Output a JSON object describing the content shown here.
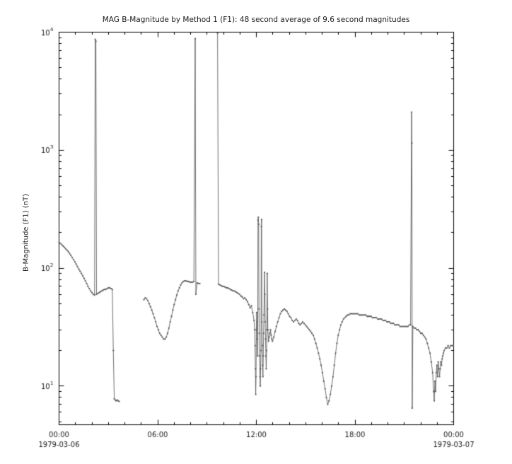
{
  "page": {
    "title": "MAG  B-Magnitude by Method 1 (F1): 48 second average of 9.6 second magnitudes"
  },
  "chart_data": {
    "type": "line",
    "title": "MAG  B-Magnitude by Method 1 (F1): 48 second average of 9.6 second magnitudes",
    "xlabel": "",
    "ylabel": "B-Magnitude (F1) (nT)",
    "yscale": "log",
    "ylim": [
      4.7,
      10000
    ],
    "xlim_hours": [
      0,
      24
    ],
    "x_major_ticks": [
      0,
      6,
      12,
      18,
      24
    ],
    "x_major_labels": [
      "00:00",
      "06:00",
      "12:00",
      "18:00",
      "00:00"
    ],
    "x_date_labels": [
      {
        "tick": 0,
        "label": "1979-03-06"
      },
      {
        "tick": 24,
        "label": "1979-03-07"
      }
    ],
    "y_major_ticks": [
      10,
      100,
      1000,
      10000
    ],
    "grid": false,
    "legend": "none",
    "axis_color": "#000000",
    "line_color": "#5e5e5e",
    "series": [
      {
        "name": "B-Magnitude (F1)",
        "points": [
          [
            0.0,
            165
          ],
          [
            0.08,
            162
          ],
          [
            0.16,
            158
          ],
          [
            0.24,
            154
          ],
          [
            0.32,
            150
          ],
          [
            0.4,
            146
          ],
          [
            0.48,
            142
          ],
          [
            0.56,
            138
          ],
          [
            0.64,
            133
          ],
          [
            0.72,
            128
          ],
          [
            0.8,
            123
          ],
          [
            0.88,
            118
          ],
          [
            0.96,
            113
          ],
          [
            1.04,
            108
          ],
          [
            1.12,
            103
          ],
          [
            1.2,
            98
          ],
          [
            1.28,
            94
          ],
          [
            1.36,
            90
          ],
          [
            1.44,
            86
          ],
          [
            1.52,
            82
          ],
          [
            1.6,
            78
          ],
          [
            1.68,
            74
          ],
          [
            1.76,
            70
          ],
          [
            1.84,
            67
          ],
          [
            1.92,
            64
          ],
          [
            2.0,
            62
          ],
          [
            2.08,
            60
          ],
          [
            2.16,
            59
          ],
          [
            2.2,
            8700
          ],
          [
            2.24,
            8400
          ],
          [
            2.28,
            60
          ],
          [
            2.36,
            61
          ],
          [
            2.44,
            62
          ],
          [
            2.52,
            63
          ],
          [
            2.6,
            64
          ],
          [
            2.68,
            65
          ],
          [
            2.76,
            66
          ],
          [
            2.84,
            66
          ],
          [
            2.92,
            67
          ],
          [
            3.0,
            68
          ],
          [
            3.08,
            68
          ],
          [
            3.16,
            67
          ],
          [
            3.24,
            66
          ],
          [
            3.3,
            20
          ],
          [
            3.36,
            7.8
          ],
          [
            3.42,
            7.6
          ],
          [
            3.48,
            7.5
          ],
          [
            3.54,
            7.6
          ],
          [
            3.6,
            7.5
          ],
          [
            3.66,
            7.4
          ],
          [
            4.4,
            null
          ],
          [
            5.16,
            54
          ],
          [
            5.24,
            56
          ],
          [
            5.32,
            55
          ],
          [
            5.4,
            53
          ],
          [
            5.48,
            50
          ],
          [
            5.56,
            47
          ],
          [
            5.64,
            44
          ],
          [
            5.72,
            41
          ],
          [
            5.8,
            38
          ],
          [
            5.88,
            35
          ],
          [
            5.96,
            32
          ],
          [
            6.04,
            30
          ],
          [
            6.12,
            28
          ],
          [
            6.2,
            27
          ],
          [
            6.28,
            26
          ],
          [
            6.36,
            25
          ],
          [
            6.44,
            25
          ],
          [
            6.52,
            26
          ],
          [
            6.6,
            28
          ],
          [
            6.68,
            31
          ],
          [
            6.76,
            35
          ],
          [
            6.84,
            39
          ],
          [
            6.92,
            44
          ],
          [
            7.0,
            49
          ],
          [
            7.08,
            54
          ],
          [
            7.16,
            59
          ],
          [
            7.24,
            64
          ],
          [
            7.32,
            68
          ],
          [
            7.4,
            72
          ],
          [
            7.48,
            75
          ],
          [
            7.56,
            77
          ],
          [
            7.64,
            78
          ],
          [
            7.72,
            78
          ],
          [
            7.8,
            77
          ],
          [
            7.88,
            77
          ],
          [
            7.96,
            76
          ],
          [
            8.04,
            76
          ],
          [
            8.12,
            76
          ],
          [
            8.2,
            77
          ],
          [
            8.28,
            8800
          ],
          [
            8.32,
            60
          ],
          [
            8.4,
            75
          ],
          [
            8.48,
            74
          ],
          [
            8.56,
            74
          ],
          [
            9.0,
            null
          ],
          [
            9.64,
            9800
          ],
          [
            9.7,
            73
          ],
          [
            9.78,
            72
          ],
          [
            9.86,
            71
          ],
          [
            9.94,
            70
          ],
          [
            10.02,
            70
          ],
          [
            10.1,
            69
          ],
          [
            10.18,
            68
          ],
          [
            10.26,
            68
          ],
          [
            10.34,
            67
          ],
          [
            10.42,
            66
          ],
          [
            10.5,
            65
          ],
          [
            10.58,
            64
          ],
          [
            10.66,
            64
          ],
          [
            10.74,
            63
          ],
          [
            10.82,
            62
          ],
          [
            10.9,
            61
          ],
          [
            10.98,
            60
          ],
          [
            11.06,
            58
          ],
          [
            11.14,
            57
          ],
          [
            11.22,
            55
          ],
          [
            11.3,
            56
          ],
          [
            11.38,
            54
          ],
          [
            11.46,
            52
          ],
          [
            11.54,
            49
          ],
          [
            11.62,
            46
          ],
          [
            11.7,
            48
          ],
          [
            11.78,
            42
          ],
          [
            11.86,
            36
          ],
          [
            11.9,
            30
          ],
          [
            11.92,
            22
          ],
          [
            11.94,
            14
          ],
          [
            11.96,
            8.5
          ],
          [
            11.98,
            12
          ],
          [
            12.0,
            30
          ],
          [
            12.02,
            42
          ],
          [
            12.04,
            35
          ],
          [
            12.06,
            25
          ],
          [
            12.08,
            18
          ],
          [
            12.1,
            255
          ],
          [
            12.12,
            270
          ],
          [
            12.14,
            235
          ],
          [
            12.16,
            45
          ],
          [
            12.18,
            28
          ],
          [
            12.2,
            18
          ],
          [
            12.22,
            12
          ],
          [
            12.24,
            10
          ],
          [
            12.26,
            14
          ],
          [
            12.28,
            20
          ],
          [
            12.3,
            225
          ],
          [
            12.32,
            258
          ],
          [
            12.34,
            35
          ],
          [
            12.36,
            22
          ],
          [
            12.38,
            15
          ],
          [
            12.4,
            12
          ],
          [
            12.42,
            18
          ],
          [
            12.44,
            28
          ],
          [
            12.46,
            40
          ],
          [
            12.5,
            92
          ],
          [
            12.52,
            60
          ],
          [
            12.54,
            35
          ],
          [
            12.56,
            25
          ],
          [
            12.58,
            18
          ],
          [
            12.6,
            14
          ],
          [
            12.62,
            20
          ],
          [
            12.64,
            30
          ],
          [
            12.66,
            90
          ],
          [
            12.68,
            45
          ],
          [
            12.7,
            30
          ],
          [
            12.74,
            24
          ],
          [
            12.78,
            26
          ],
          [
            12.82,
            28
          ],
          [
            12.86,
            30
          ],
          [
            12.9,
            27
          ],
          [
            12.94,
            25
          ],
          [
            12.98,
            24
          ],
          [
            13.06,
            26
          ],
          [
            13.14,
            29
          ],
          [
            13.22,
            32
          ],
          [
            13.3,
            35
          ],
          [
            13.38,
            38
          ],
          [
            13.46,
            41
          ],
          [
            13.54,
            43
          ],
          [
            13.62,
            44
          ],
          [
            13.7,
            45
          ],
          [
            13.78,
            44
          ],
          [
            13.86,
            43
          ],
          [
            13.94,
            41
          ],
          [
            14.02,
            39
          ],
          [
            14.1,
            38
          ],
          [
            14.18,
            36
          ],
          [
            14.26,
            35
          ],
          [
            14.34,
            36
          ],
          [
            14.42,
            37
          ],
          [
            14.5,
            36
          ],
          [
            14.58,
            34
          ],
          [
            14.66,
            33
          ],
          [
            14.74,
            34
          ],
          [
            14.82,
            35
          ],
          [
            14.9,
            34
          ],
          [
            14.98,
            33
          ],
          [
            15.06,
            32
          ],
          [
            15.14,
            31
          ],
          [
            15.22,
            30
          ],
          [
            15.3,
            29
          ],
          [
            15.38,
            28
          ],
          [
            15.46,
            27
          ],
          [
            15.54,
            25
          ],
          [
            15.62,
            23
          ],
          [
            15.7,
            21
          ],
          [
            15.78,
            19
          ],
          [
            15.86,
            17
          ],
          [
            15.94,
            15
          ],
          [
            16.02,
            13
          ],
          [
            16.1,
            11
          ],
          [
            16.18,
            9.5
          ],
          [
            16.26,
            8
          ],
          [
            16.34,
            7
          ],
          [
            16.42,
            7.5
          ],
          [
            16.5,
            8.5
          ],
          [
            16.58,
            10
          ],
          [
            16.66,
            12
          ],
          [
            16.74,
            15
          ],
          [
            16.82,
            19
          ],
          [
            16.9,
            23
          ],
          [
            16.98,
            27
          ],
          [
            17.06,
            30
          ],
          [
            17.14,
            33
          ],
          [
            17.22,
            35
          ],
          [
            17.3,
            37
          ],
          [
            17.38,
            38
          ],
          [
            17.46,
            39
          ],
          [
            17.54,
            40
          ],
          [
            17.62,
            40
          ],
          [
            17.7,
            41
          ],
          [
            17.78,
            41
          ],
          [
            17.86,
            41
          ],
          [
            17.94,
            41
          ],
          [
            18.02,
            41
          ],
          [
            18.1,
            41
          ],
          [
            18.18,
            41
          ],
          [
            18.26,
            40
          ],
          [
            18.34,
            40
          ],
          [
            18.42,
            40
          ],
          [
            18.5,
            40
          ],
          [
            18.58,
            40
          ],
          [
            18.66,
            40
          ],
          [
            18.74,
            39
          ],
          [
            18.82,
            39
          ],
          [
            18.9,
            39
          ],
          [
            18.98,
            39
          ],
          [
            19.06,
            38
          ],
          [
            19.14,
            38
          ],
          [
            19.22,
            38
          ],
          [
            19.3,
            38
          ],
          [
            19.38,
            37
          ],
          [
            19.46,
            37
          ],
          [
            19.54,
            37
          ],
          [
            19.62,
            37
          ],
          [
            19.7,
            36
          ],
          [
            19.78,
            36
          ],
          [
            19.86,
            36
          ],
          [
            19.94,
            35
          ],
          [
            20.02,
            35
          ],
          [
            20.1,
            35
          ],
          [
            20.18,
            34
          ],
          [
            20.26,
            34
          ],
          [
            20.34,
            34
          ],
          [
            20.42,
            33
          ],
          [
            20.5,
            33
          ],
          [
            20.58,
            33
          ],
          [
            20.66,
            33
          ],
          [
            20.74,
            32
          ],
          [
            20.82,
            32
          ],
          [
            20.9,
            32
          ],
          [
            20.98,
            32
          ],
          [
            21.06,
            32
          ],
          [
            21.14,
            32
          ],
          [
            21.22,
            32
          ],
          [
            21.3,
            33
          ],
          [
            21.38,
            33
          ],
          [
            21.44,
            2100
          ],
          [
            21.46,
            1150
          ],
          [
            21.48,
            6.5
          ],
          [
            21.52,
            32
          ],
          [
            21.6,
            31
          ],
          [
            21.68,
            31
          ],
          [
            21.76,
            30
          ],
          [
            21.84,
            30
          ],
          [
            21.92,
            29
          ],
          [
            22.0,
            28
          ],
          [
            22.08,
            28
          ],
          [
            22.16,
            27
          ],
          [
            22.24,
            26
          ],
          [
            22.32,
            25
          ],
          [
            22.4,
            23
          ],
          [
            22.48,
            21
          ],
          [
            22.56,
            19
          ],
          [
            22.64,
            16
          ],
          [
            22.72,
            13
          ],
          [
            22.78,
            9
          ],
          [
            22.82,
            7.5
          ],
          [
            22.86,
            11
          ],
          [
            22.9,
            9
          ],
          [
            22.94,
            13
          ],
          [
            22.98,
            15
          ],
          [
            23.02,
            12
          ],
          [
            23.06,
            16
          ],
          [
            23.1,
            14
          ],
          [
            23.14,
            12
          ],
          [
            23.18,
            14
          ],
          [
            23.22,
            16
          ],
          [
            23.26,
            15
          ],
          [
            23.3,
            17
          ],
          [
            23.34,
            18
          ],
          [
            23.38,
            19
          ],
          [
            23.42,
            20
          ],
          [
            23.5,
            21
          ],
          [
            23.58,
            21
          ],
          [
            23.66,
            22
          ],
          [
            23.74,
            21
          ],
          [
            23.82,
            22
          ],
          [
            23.9,
            22
          ],
          [
            23.98,
            22
          ]
        ]
      }
    ]
  }
}
